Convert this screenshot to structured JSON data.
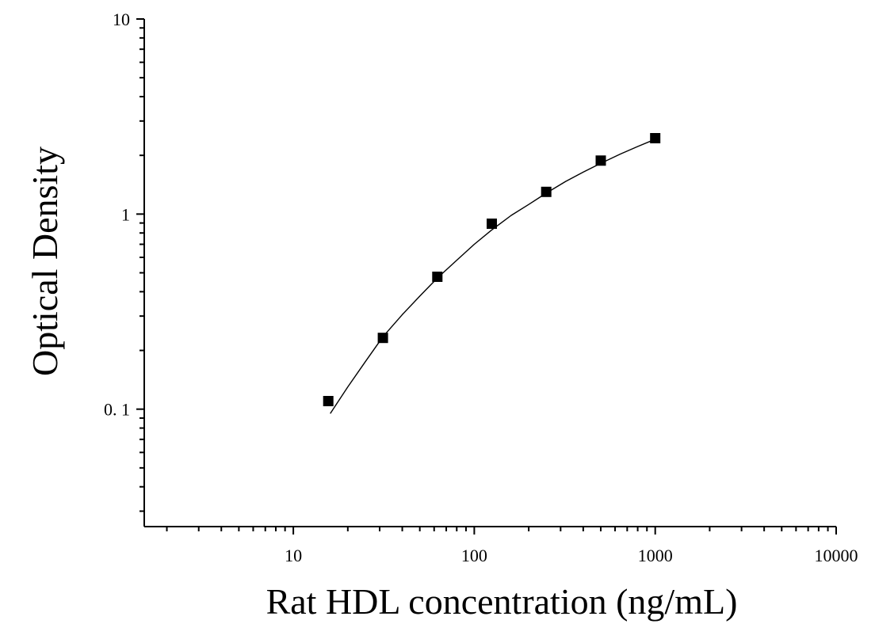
{
  "chart_data": {
    "type": "scatter",
    "title": "",
    "xlabel": "Rat HDL concentration (ng/mL)",
    "ylabel": "Optical Density",
    "x_scale": "log",
    "y_scale": "log",
    "xlim": [
      1.5,
      10000
    ],
    "ylim": [
      0.025,
      10
    ],
    "x_ticks": [
      10,
      100,
      1000,
      10000
    ],
    "x_tick_labels": [
      "10",
      "100",
      "1000",
      "10000"
    ],
    "y_ticks": [
      0.1,
      1,
      10
    ],
    "y_tick_labels": [
      "0. 1",
      "1",
      "10"
    ],
    "grid": false,
    "legend": "none",
    "marker_color": "#000000",
    "curve_color": "#000000",
    "series": [
      {
        "marker": "square",
        "x": [
          15.6,
          31.25,
          62.5,
          125,
          250,
          500,
          1000
        ],
        "y": [
          0.11,
          0.232,
          0.477,
          0.893,
          1.3,
          1.88,
          2.45
        ]
      }
    ],
    "fit_curve": {
      "x": [
        16,
        20,
        25,
        31.25,
        40,
        50,
        62.5,
        80,
        100,
        125,
        160,
        200,
        250,
        320,
        400,
        500,
        640,
        800,
        1000
      ],
      "y": [
        0.095,
        0.13,
        0.175,
        0.235,
        0.305,
        0.38,
        0.47,
        0.58,
        0.7,
        0.83,
        0.985,
        1.12,
        1.28,
        1.47,
        1.64,
        1.82,
        2.03,
        2.22,
        2.42
      ]
    }
  }
}
